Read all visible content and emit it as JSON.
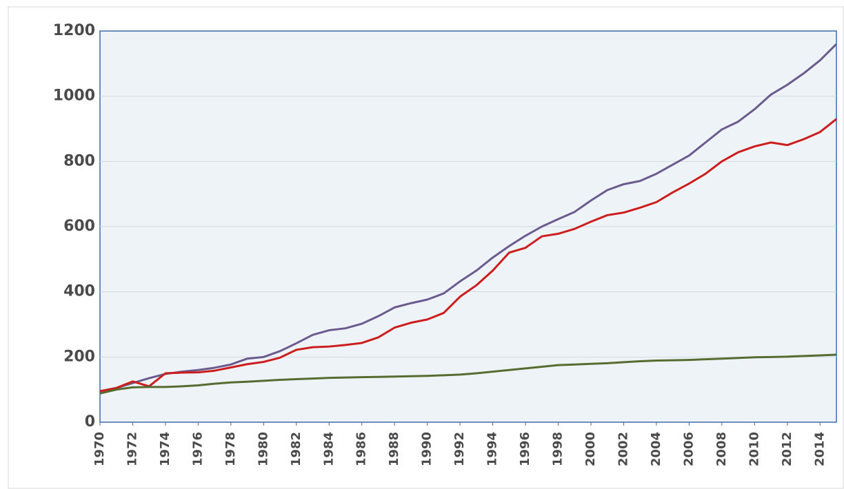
{
  "chart_data": {
    "type": "line",
    "x": [
      1970,
      1971,
      1972,
      1973,
      1974,
      1975,
      1976,
      1977,
      1978,
      1979,
      1980,
      1981,
      1982,
      1983,
      1984,
      1985,
      1986,
      1987,
      1988,
      1989,
      1990,
      1991,
      1992,
      1993,
      1994,
      1995,
      1996,
      1997,
      1998,
      1999,
      2000,
      2001,
      2002,
      2003,
      2004,
      2005,
      2006,
      2007,
      2008,
      2009,
      2010,
      2011,
      2012,
      2013,
      2014,
      2015
    ],
    "series": [
      {
        "color": "#6b5a8e",
        "values": [
          95,
          105,
          120,
          135,
          148,
          155,
          160,
          167,
          177,
          195,
          200,
          218,
          242,
          268,
          282,
          288,
          302,
          325,
          352,
          365,
          376,
          395,
          432,
          465,
          505,
          540,
          572,
          600,
          623,
          645,
          680,
          712,
          730,
          740,
          762,
          790,
          818,
          858,
          898,
          922,
          960,
          1005,
          1035,
          1070,
          1110,
          1160
        ]
      },
      {
        "color": "#cc1c1c",
        "values": [
          95,
          105,
          125,
          110,
          150,
          152,
          153,
          158,
          168,
          178,
          185,
          198,
          222,
          230,
          232,
          237,
          243,
          260,
          290,
          305,
          315,
          335,
          385,
          420,
          465,
          520,
          535,
          570,
          578,
          593,
          615,
          635,
          643,
          658,
          675,
          705,
          732,
          762,
          800,
          828,
          846,
          858,
          850,
          868,
          890,
          930
        ]
      },
      {
        "color": "#556b2f",
        "values": [
          88,
          100,
          107,
          108,
          108,
          110,
          113,
          118,
          122,
          124,
          127,
          130,
          132,
          134,
          136,
          137,
          138,
          139,
          140,
          141,
          142,
          144,
          146,
          150,
          155,
          160,
          165,
          170,
          175,
          177,
          179,
          181,
          184,
          187,
          189,
          190,
          191,
          193,
          195,
          197,
          199,
          200,
          201,
          203,
          205,
          207
        ]
      }
    ],
    "xlim": [
      1970,
      2015
    ],
    "xticks": [
      1970,
      1972,
      1974,
      1976,
      1978,
      1980,
      1982,
      1984,
      1986,
      1988,
      1990,
      1992,
      1994,
      1996,
      1998,
      2000,
      2002,
      2004,
      2006,
      2008,
      2010,
      2012,
      2014
    ],
    "ylim": [
      0,
      1200
    ],
    "yticks": [
      0,
      200,
      400,
      600,
      800,
      1000,
      1200
    ],
    "grid": true
  }
}
